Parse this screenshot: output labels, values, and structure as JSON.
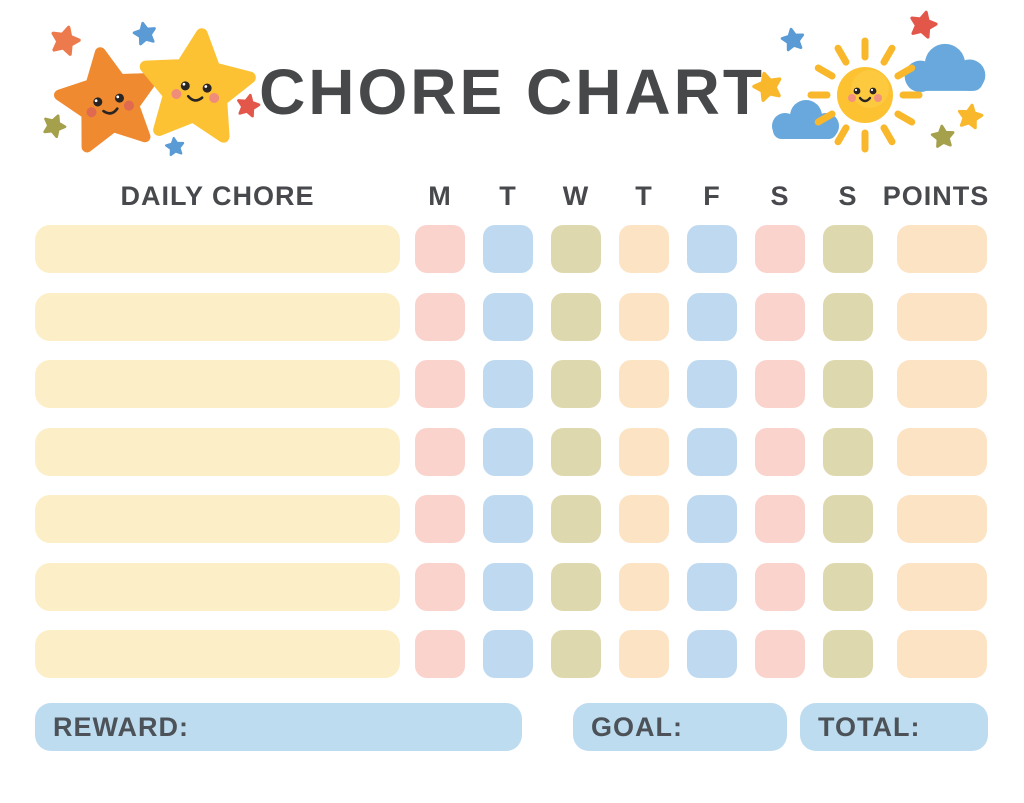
{
  "title": "CHORE CHART",
  "colors": {
    "text": "#47494c",
    "cream": "#fcefc8",
    "pink": "#f9d3cc",
    "blue": "#bfdaf0",
    "olive": "#ded8af",
    "peach": "#fce3c4",
    "footer_blue": "#bddcf0"
  },
  "table": {
    "chore_header": "DAILY CHORE",
    "day_headers": [
      "M",
      "T",
      "W",
      "T",
      "F",
      "S",
      "S"
    ],
    "points_header": "POINTS",
    "day_pattern": [
      "pink",
      "blue",
      "olive",
      "peach",
      "blue",
      "pink",
      "olive"
    ],
    "points_color": "peach",
    "rows": [
      {
        "chore": "",
        "days": [
          "",
          "",
          "",
          "",
          "",
          "",
          ""
        ],
        "points": ""
      },
      {
        "chore": "",
        "days": [
          "",
          "",
          "",
          "",
          "",
          "",
          ""
        ],
        "points": ""
      },
      {
        "chore": "",
        "days": [
          "",
          "",
          "",
          "",
          "",
          "",
          ""
        ],
        "points": ""
      },
      {
        "chore": "",
        "days": [
          "",
          "",
          "",
          "",
          "",
          "",
          ""
        ],
        "points": ""
      },
      {
        "chore": "",
        "days": [
          "",
          "",
          "",
          "",
          "",
          "",
          ""
        ],
        "points": ""
      },
      {
        "chore": "",
        "days": [
          "",
          "",
          "",
          "",
          "",
          "",
          ""
        ],
        "points": ""
      },
      {
        "chore": "",
        "days": [
          "",
          "",
          "",
          "",
          "",
          "",
          ""
        ],
        "points": ""
      }
    ]
  },
  "footer": {
    "reward_label": "REWARD:",
    "reward_value": "",
    "goal_label": "GOAL:",
    "goal_value": "",
    "total_label": "TOTAL:",
    "total_value": ""
  },
  "decorations": {
    "left_icons": [
      "orange-star-icon",
      "yellow-star-icon",
      "sparkle-star-icons"
    ],
    "right_icons": [
      "sun-icon",
      "cloud-icon",
      "sparkle-star-icons"
    ],
    "star_orange": "#ef8a30",
    "star_yellow": "#fdc234",
    "small_star_orange": "#ed7a4d",
    "small_star_red": "#e3574b",
    "small_star_blue": "#5b9bd5",
    "small_star_olive": "#a5a04b",
    "sun_yellow": "#fcc232",
    "ray_yellow": "#f9b82b",
    "cloud_blue": "#68a8dc",
    "cheek_pink": "#f08d7a",
    "eye_dark": "#2a2423"
  }
}
